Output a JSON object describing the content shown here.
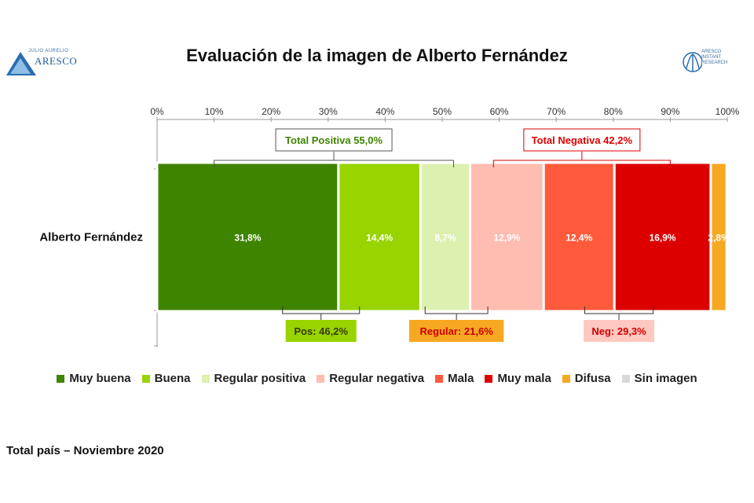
{
  "title": "Evaluación de la imagen de Alberto Fernández",
  "logo_left": {
    "top_text": "JULIO AURELIO",
    "brand": "ARESCO"
  },
  "logo_right": {
    "text": "ARESCO INSTANT RESEARCH"
  },
  "footer": "Total país – Noviembre 2020",
  "chart_data": {
    "type": "bar",
    "orientation": "horizontal-stacked",
    "categories": [
      "Alberto Fernández"
    ],
    "xlim": [
      0,
      100
    ],
    "x_ticks": [
      "0%",
      "10%",
      "20%",
      "30%",
      "40%",
      "50%",
      "60%",
      "70%",
      "80%",
      "90%",
      "100%"
    ],
    "series": [
      {
        "name": "Muy buena",
        "values": [
          31.8
        ],
        "label": "31,8%",
        "color": "#3f8400",
        "label_color": "#ffffff"
      },
      {
        "name": "Buena",
        "values": [
          14.4
        ],
        "label": "14,4%",
        "color": "#97d400",
        "label_color": "#ffffff"
      },
      {
        "name": "Regular positiva",
        "values": [
          8.7
        ],
        "label": "8,7%",
        "color": "#dcf0b0",
        "label_color": "#ffffff"
      },
      {
        "name": "Regular negativa",
        "values": [
          12.9
        ],
        "label": "12,9%",
        "color": "#ffbcb0",
        "label_color": "#ffffff"
      },
      {
        "name": "Mala",
        "values": [
          12.4
        ],
        "label": "12,4%",
        "color": "#ff5a3c",
        "label_color": "#ffffff"
      },
      {
        "name": "Muy mala",
        "values": [
          16.9
        ],
        "label": "16,9%",
        "color": "#dd0000",
        "label_color": "#ffffff"
      },
      {
        "name": "Difusa",
        "values": [
          2.8
        ],
        "label": "2,8%",
        "color": "#f6a822",
        "label_color": "#ffffff"
      },
      {
        "name": "Sin imagen",
        "values": [
          0.5
        ],
        "label": "",
        "color": "#d9d9d9",
        "label_color": "#ffffff"
      }
    ],
    "annotations_top": [
      {
        "text": "Total Positiva 55,0%",
        "from": 10,
        "to": 52,
        "color": "#3f8400",
        "border": "#555555"
      },
      {
        "text": "Total Negativa  42,2%",
        "from": 59,
        "to": 90,
        "color": "#e00000",
        "border": "#e00000"
      }
    ],
    "annotations_bottom": [
      {
        "text": "Pos: 46,2%",
        "from": 22,
        "to": 35.5,
        "bg": "#97d400",
        "color": "#3a3a00"
      },
      {
        "text": "Regular: 21,6%",
        "from": 47,
        "to": 58,
        "bg": "#f6a822",
        "color": "#cc0000"
      },
      {
        "text": "Neg: 29,3%",
        "from": 75,
        "to": 87,
        "bg": "#ffc8c0",
        "color": "#cc0000"
      }
    ],
    "grid": false,
    "legend_position": "bottom"
  }
}
